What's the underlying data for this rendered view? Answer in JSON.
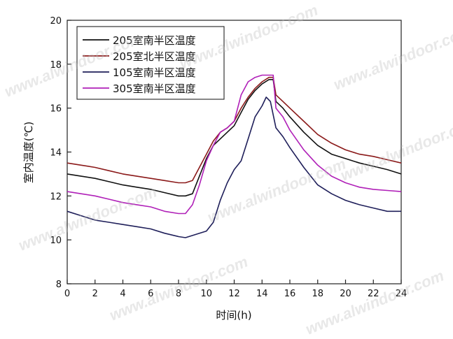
{
  "chart_data": {
    "type": "line",
    "title": "",
    "xlabel": "时间(h)",
    "ylabel": "室内温度(℃)",
    "xlim": [
      0,
      24
    ],
    "ylim": [
      8,
      20
    ],
    "xticks": [
      0,
      2,
      4,
      6,
      8,
      10,
      12,
      14,
      16,
      18,
      20,
      22,
      24
    ],
    "yticks": [
      8,
      10,
      12,
      14,
      16,
      18,
      20
    ],
    "grid": false,
    "legend_position": "top-left",
    "series": [
      {
        "name": "205室南半区温度",
        "color": "#111111",
        "x": [
          0,
          1,
          2,
          3,
          4,
          5,
          6,
          7,
          8,
          8.5,
          9,
          9.5,
          10,
          10.5,
          11,
          11.5,
          12,
          12.5,
          13,
          13.5,
          14,
          14.5,
          14.8,
          15,
          15.5,
          16,
          17,
          18,
          19,
          20,
          21,
          22,
          23,
          24
        ],
        "y": [
          13.0,
          12.9,
          12.8,
          12.65,
          12.5,
          12.4,
          12.3,
          12.15,
          12.0,
          12.0,
          12.1,
          12.9,
          13.7,
          14.3,
          14.6,
          14.9,
          15.2,
          15.8,
          16.4,
          16.8,
          17.1,
          17.3,
          17.3,
          16.3,
          16.0,
          15.6,
          14.9,
          14.3,
          13.9,
          13.7,
          13.5,
          13.35,
          13.2,
          13.0
        ]
      },
      {
        "name": "205室北半区温度",
        "color": "#8b1a1a",
        "x": [
          0,
          1,
          2,
          3,
          4,
          5,
          6,
          7,
          8,
          8.5,
          9,
          9.5,
          10,
          10.5,
          11,
          11.5,
          12,
          12.5,
          13,
          13.5,
          14,
          14.5,
          14.8,
          15,
          15.5,
          16,
          17,
          18,
          19,
          20,
          21,
          22,
          23,
          24
        ],
        "y": [
          13.5,
          13.4,
          13.3,
          13.15,
          13.0,
          12.9,
          12.8,
          12.7,
          12.6,
          12.6,
          12.7,
          13.3,
          13.9,
          14.5,
          14.9,
          15.1,
          15.4,
          16.0,
          16.5,
          16.9,
          17.2,
          17.4,
          17.4,
          16.6,
          16.3,
          16.0,
          15.4,
          14.8,
          14.4,
          14.1,
          13.9,
          13.8,
          13.65,
          13.5
        ]
      },
      {
        "name": "105室南半区温度",
        "color": "#1f1f5a",
        "x": [
          0,
          1,
          2,
          3,
          4,
          5,
          6,
          7,
          8,
          8.5,
          9,
          9.5,
          10,
          10.5,
          11,
          11.5,
          12,
          12.5,
          13,
          13.5,
          14,
          14.3,
          14.6,
          15,
          15.5,
          16,
          17,
          18,
          19,
          20,
          21,
          22,
          23,
          24
        ],
        "y": [
          11.3,
          11.1,
          10.9,
          10.8,
          10.7,
          10.6,
          10.5,
          10.3,
          10.15,
          10.1,
          10.2,
          10.3,
          10.4,
          10.8,
          11.8,
          12.6,
          13.2,
          13.6,
          14.6,
          15.6,
          16.1,
          16.5,
          16.3,
          15.1,
          14.7,
          14.2,
          13.3,
          12.5,
          12.1,
          11.8,
          11.6,
          11.45,
          11.3,
          11.3
        ]
      },
      {
        "name": "305室南半区温度",
        "color": "#b020b8",
        "x": [
          0,
          1,
          2,
          3,
          4,
          5,
          6,
          7,
          8,
          8.5,
          9,
          9.5,
          10,
          10.5,
          11,
          11.5,
          12,
          12.5,
          13,
          13.5,
          14,
          14.5,
          14.8,
          15,
          15.5,
          16,
          17,
          18,
          19,
          20,
          21,
          22,
          23,
          24
        ],
        "y": [
          12.2,
          12.1,
          12.0,
          11.85,
          11.7,
          11.6,
          11.5,
          11.3,
          11.2,
          11.2,
          11.6,
          12.5,
          13.6,
          14.3,
          14.9,
          15.1,
          15.4,
          16.6,
          17.2,
          17.4,
          17.5,
          17.5,
          17.5,
          16.0,
          15.6,
          15.0,
          14.1,
          13.4,
          12.9,
          12.6,
          12.4,
          12.3,
          12.25,
          12.2
        ]
      }
    ]
  }
}
